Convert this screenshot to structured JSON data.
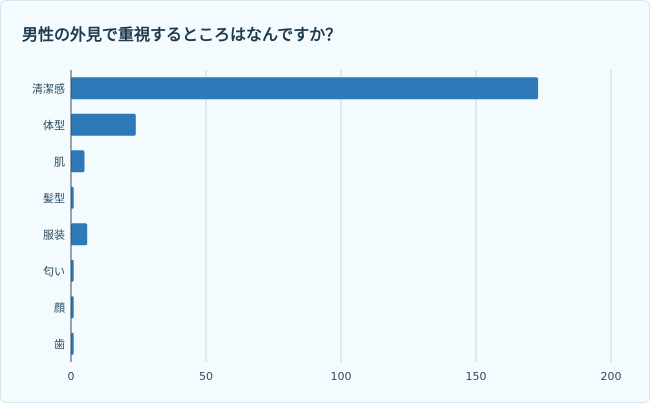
{
  "colors": {
    "bar": "#2e7ab8",
    "grid": "#c9d6de",
    "axis": "#3a4a55",
    "background": "#f4fbfe"
  },
  "chart_data": {
    "type": "bar",
    "orientation": "horizontal",
    "title": "男性の外見で重視するところはなんですか？",
    "xlabel": "",
    "ylabel": "",
    "categories": [
      "清潔感",
      "体型",
      "肌",
      "髪型",
      "服装",
      "匂い",
      "顔",
      "歯"
    ],
    "values": [
      173,
      24,
      5,
      1,
      6,
      1,
      1,
      1
    ],
    "xlim": [
      0,
      200
    ],
    "xticks": [
      0,
      50,
      100,
      150,
      200
    ],
    "grid": "vertical",
    "legend": "none"
  }
}
